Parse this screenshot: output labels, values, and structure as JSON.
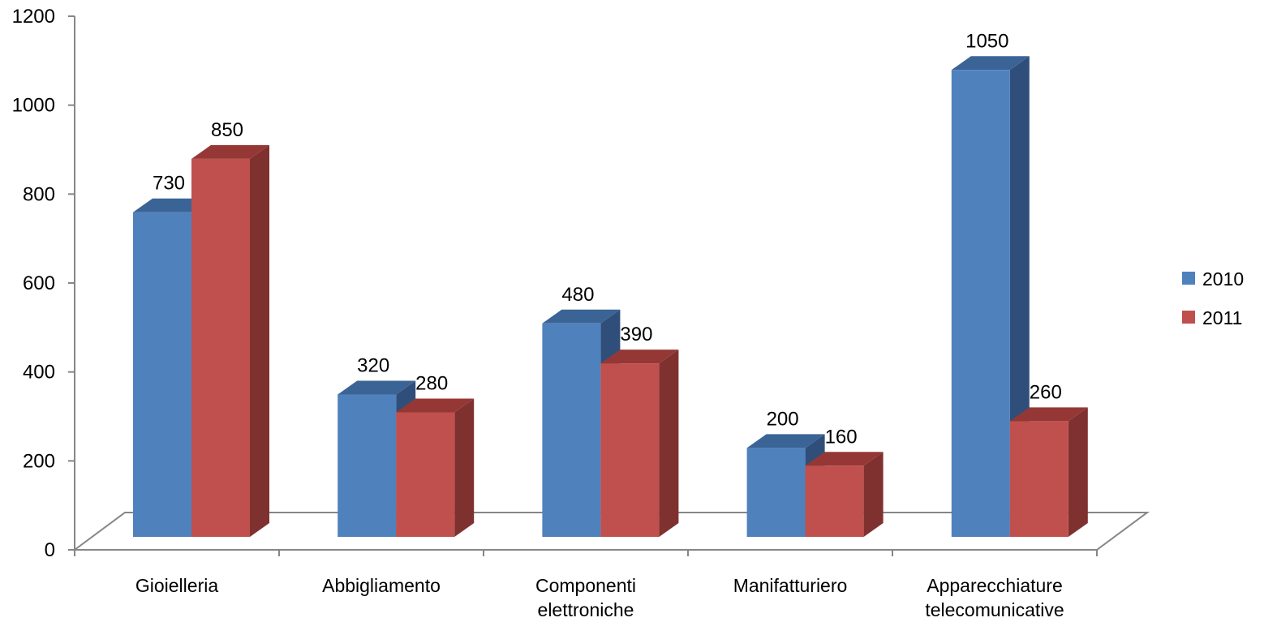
{
  "chart_data": {
    "type": "bar",
    "style": "3d-clustered-column",
    "categories": [
      [
        "Gioielleria"
      ],
      [
        "Abbigliamento"
      ],
      [
        "Componenti",
        "elettroniche"
      ],
      [
        "Manifatturiero"
      ],
      [
        "Apparecchiature",
        "telecomunicative"
      ]
    ],
    "series": [
      {
        "name": "2010",
        "values": [
          730,
          320,
          480,
          200,
          1050
        ],
        "color": "#4F81BD",
        "side_color": "#2F4F7A",
        "top_color": "#3B6496"
      },
      {
        "name": "2011",
        "values": [
          850,
          280,
          390,
          160,
          260
        ],
        "color": "#C0504D",
        "side_color": "#7F312F",
        "top_color": "#953835"
      }
    ],
    "y_ticks": [
      "0",
      "200",
      "400",
      "600",
      "800",
      "1000",
      "1200"
    ],
    "ylim": [
      0,
      1200
    ],
    "title": "",
    "xlabel": "",
    "ylabel": "",
    "grid": false,
    "legend_position": "right",
    "axis_color": "#868686"
  }
}
